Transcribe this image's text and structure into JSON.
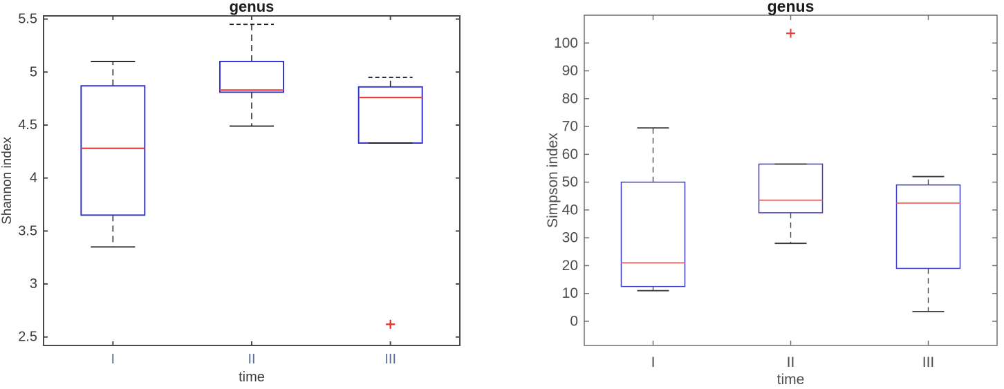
{
  "page": {
    "background": "#ffffff"
  },
  "chart_data": [
    {
      "type": "box",
      "title": "genus",
      "xlabel": "time",
      "ylabel": "Shannon index",
      "categories": [
        "I",
        "II",
        "III"
      ],
      "ylim": [
        2.42,
        5.53
      ],
      "yticks": [
        2.5,
        3,
        3.5,
        4,
        4.5,
        5,
        5.5
      ],
      "ytick_labels": [
        "2.5",
        "3",
        "3.5",
        "4",
        "4.5",
        "5",
        "5.5"
      ],
      "grid": false,
      "legend": null,
      "boxes": [
        {
          "category": "I",
          "whisker_low": 3.35,
          "q1": 3.65,
          "median": 4.28,
          "q3": 4.87,
          "whisker_high": 5.1,
          "outliers": []
        },
        {
          "category": "II",
          "whisker_low": 4.49,
          "q1": 4.81,
          "median": 4.83,
          "q3": 5.1,
          "whisker_high": 5.45,
          "outliers": [],
          "top_cap_dashed": true
        },
        {
          "category": "III",
          "whisker_low": 4.33,
          "q1": 4.33,
          "median": 4.76,
          "q3": 4.86,
          "whisker_high": 4.95,
          "outliers": [
            2.62
          ],
          "top_cap_dashed": true
        }
      ],
      "colors": {
        "box": "#2d2dd2",
        "median": "#e8403a",
        "whisker": "#2e2e2e",
        "cap": "#1f1f1f",
        "outlier": "#e53229",
        "frame": "#4a4a4a",
        "tick_text": "#3c3c3c",
        "category_text": "#5b6e96",
        "title_text": "#1c1c1c"
      }
    },
    {
      "type": "box",
      "title": "genus",
      "xlabel": "time",
      "ylabel": "Simpson index",
      "categories": [
        "I",
        "II",
        "III"
      ],
      "ylim": [
        -8.7,
        110
      ],
      "yticks": [
        0,
        10,
        20,
        30,
        40,
        50,
        60,
        70,
        80,
        90,
        100
      ],
      "ytick_labels": [
        "0",
        "10",
        "20",
        "30",
        "40",
        "50",
        "60",
        "70",
        "80",
        "90",
        "100"
      ],
      "grid": false,
      "legend": null,
      "boxes": [
        {
          "category": "I",
          "whisker_low": 11,
          "q1": 12.5,
          "median": 21,
          "q3": 50,
          "whisker_high": 69.5,
          "outliers": []
        },
        {
          "category": "II",
          "whisker_low": 28,
          "q1": 39,
          "median": 43.5,
          "q3": 56.5,
          "whisker_high": 56.5,
          "outliers": [
            103.5
          ]
        },
        {
          "category": "III",
          "whisker_low": 3.5,
          "q1": 19,
          "median": 42.5,
          "q3": 49,
          "whisker_high": 52,
          "outliers": []
        }
      ],
      "colors": {
        "box": "#3c3cc8",
        "median": "#ef6d6d",
        "whisker": "#4a4a4a",
        "cap": "#3a3a3a",
        "outlier": "#e8403a",
        "frame": "#6e6e6e",
        "tick_text": "#4d4d4d",
        "category_text": "#4d4d4d",
        "title_text": "#1c1c1c"
      }
    }
  ]
}
